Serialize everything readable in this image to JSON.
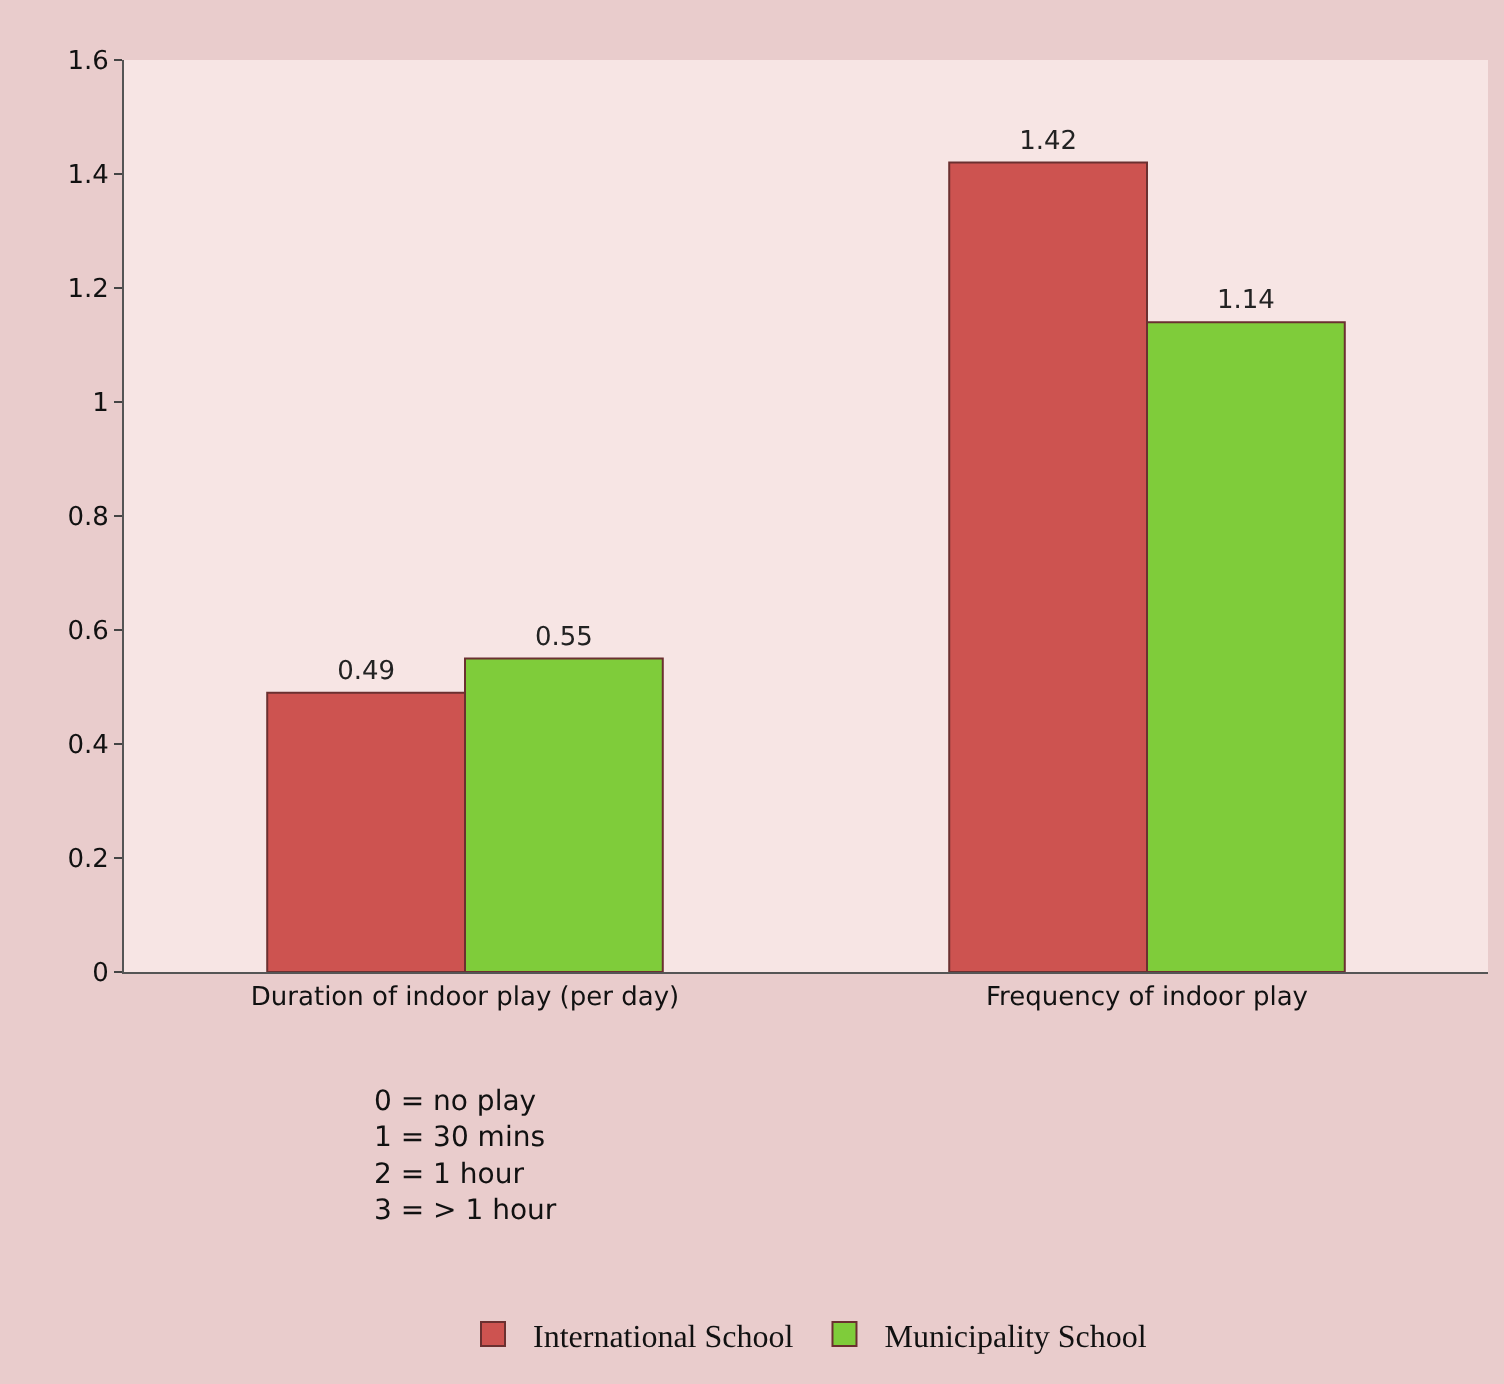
{
  "chart_data": {
    "type": "bar",
    "categories": [
      "Duration of indoor play (per day)",
      "Frequency of indoor play"
    ],
    "series": [
      {
        "name": "International School",
        "color": "#cd5350",
        "values": [
          0.49,
          1.42
        ]
      },
      {
        "name": "Municipality School",
        "color": "#7fcc3a",
        "values": [
          0.55,
          1.14
        ]
      }
    ],
    "ylim": [
      0,
      1.6
    ],
    "yticks": [
      0,
      0.2,
      0.4,
      0.6,
      0.8,
      1,
      1.2,
      1.4,
      1.6
    ],
    "data_labels": true,
    "grid": false,
    "legend": "bottom",
    "annotations": [
      "0 = no play\n1 = 30 mins\n2 = 1 hour\n3 = > 1 hour"
    ]
  }
}
